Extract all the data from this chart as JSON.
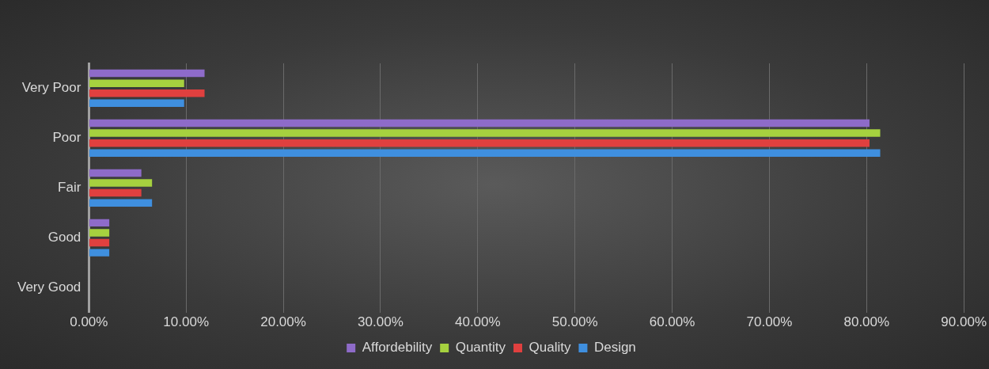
{
  "chart_data": {
    "type": "bar",
    "orientation": "horizontal",
    "categories": [
      "Very Poor",
      "Poor",
      "Fair",
      "Good",
      "Very Good"
    ],
    "series": [
      {
        "name": "Affordebility",
        "color": "#8e6bc9",
        "values": [
          11.9,
          80.3,
          5.4,
          2.1,
          0
        ]
      },
      {
        "name": "Quantity",
        "color": "#a6d13f",
        "values": [
          9.8,
          81.4,
          6.5,
          2.1,
          0
        ]
      },
      {
        "name": "Quality",
        "color": "#e0403f",
        "values": [
          11.9,
          80.3,
          5.4,
          2.1,
          0
        ]
      },
      {
        "name": "Design",
        "color": "#3f8fdf",
        "values": [
          9.8,
          81.4,
          6.5,
          2.1,
          0
        ]
      }
    ],
    "xlim": [
      0,
      90
    ],
    "xticks": [
      {
        "value": 0,
        "label": "0.00%"
      },
      {
        "value": 10,
        "label": "10.00%"
      },
      {
        "value": 20,
        "label": "20.00%"
      },
      {
        "value": 30,
        "label": "30.00%"
      },
      {
        "value": 40,
        "label": "40.00%"
      },
      {
        "value": 50,
        "label": "50.00%"
      },
      {
        "value": 60,
        "label": "60.00%"
      },
      {
        "value": 70,
        "label": "70.00%"
      },
      {
        "value": 80,
        "label": "80.00%"
      },
      {
        "value": 90,
        "label": "90.00%"
      }
    ],
    "grid": "x",
    "legend": "bottom"
  }
}
